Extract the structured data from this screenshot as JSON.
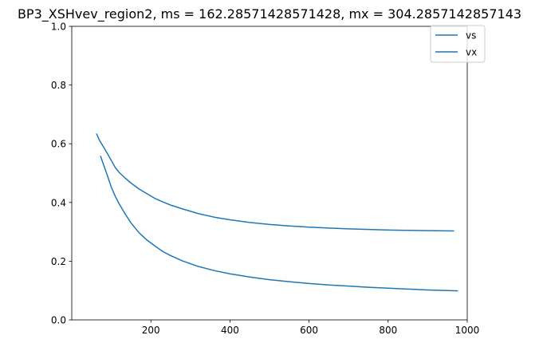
{
  "chart_data": {
    "type": "line",
    "title": "BP3_XSHvev_region2, ms = 162.28571428571428, mx = 304.2857142857143",
    "xlabel": "",
    "ylabel": "",
    "xlim": [
      0,
      1000
    ],
    "ylim": [
      0.0,
      1.0
    ],
    "xticks": [
      200,
      400,
      600,
      800,
      1000
    ],
    "xtick_labels": [
      "200",
      "400",
      "600",
      "800",
      "1000"
    ],
    "yticks": [
      0.0,
      0.2,
      0.4,
      0.6,
      0.8,
      1.0
    ],
    "ytick_labels": [
      "0.0",
      "0.2",
      "0.4",
      "0.6",
      "0.8",
      "1.0"
    ],
    "grid": false,
    "legend": {
      "position": "top-right",
      "entries": [
        "vs",
        "vx"
      ]
    },
    "series": [
      {
        "name": "vs",
        "color": "#1f77b4",
        "x": [
          63,
          70,
          80,
          90,
          100,
          110,
          120,
          135,
          150,
          170,
          190,
          210,
          230,
          250,
          280,
          320,
          360,
          400,
          450,
          500,
          550,
          600,
          650,
          700,
          750,
          800,
          850,
          900,
          965
        ],
        "y": [
          0.633,
          0.612,
          0.59,
          0.567,
          0.543,
          0.519,
          0.502,
          0.483,
          0.466,
          0.446,
          0.43,
          0.414,
          0.402,
          0.391,
          0.378,
          0.362,
          0.35,
          0.341,
          0.332,
          0.325,
          0.32,
          0.316,
          0.313,
          0.31,
          0.308,
          0.306,
          0.305,
          0.304,
          0.303
        ]
      },
      {
        "name": "vx",
        "color": "#1f77b4",
        "x": [
          73,
          80,
          90,
          100,
          110,
          120,
          135,
          150,
          170,
          190,
          210,
          230,
          250,
          280,
          320,
          360,
          400,
          450,
          500,
          550,
          600,
          650,
          700,
          750,
          800,
          850,
          900,
          975
        ],
        "y": [
          0.557,
          0.53,
          0.492,
          0.452,
          0.421,
          0.395,
          0.361,
          0.33,
          0.297,
          0.272,
          0.252,
          0.233,
          0.219,
          0.201,
          0.182,
          0.168,
          0.157,
          0.146,
          0.137,
          0.13,
          0.124,
          0.119,
          0.115,
          0.111,
          0.108,
          0.105,
          0.102,
          0.099
        ]
      }
    ]
  }
}
